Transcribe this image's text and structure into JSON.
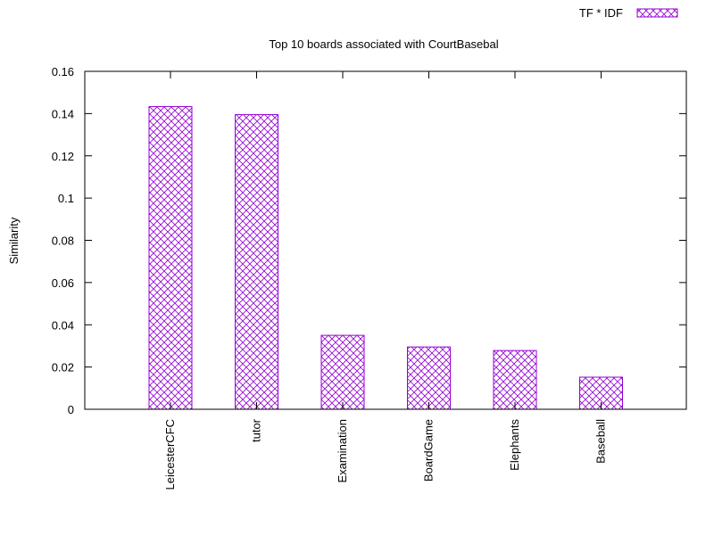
{
  "chart_data": {
    "type": "bar",
    "title": "Top 10 boards associated with CourtBasebal",
    "ylabel": "Similarity",
    "xlabel": "",
    "ylim": [
      0,
      0.16
    ],
    "y_ticks": [
      0,
      0.02,
      0.04,
      0.06,
      0.08,
      0.1,
      0.12,
      0.14,
      0.16
    ],
    "y_tick_labels": [
      "0",
      "0.02",
      "0.04",
      "0.06",
      "0.08",
      "0.1",
      "0.12",
      "0.14",
      "0.16"
    ],
    "categories": [
      "LeicesterCFC",
      "tutor",
      "Examination",
      "BoardGame",
      "Elephants",
      "Baseball"
    ],
    "series": [
      {
        "name": "TF * IDF",
        "values": [
          0.1433,
          0.1395,
          0.035,
          0.0295,
          0.0278,
          0.0152
        ]
      }
    ],
    "legend_position": "top-right",
    "grid": false,
    "bar_color": "#9400d3",
    "bar_pattern": "crosshatch"
  }
}
